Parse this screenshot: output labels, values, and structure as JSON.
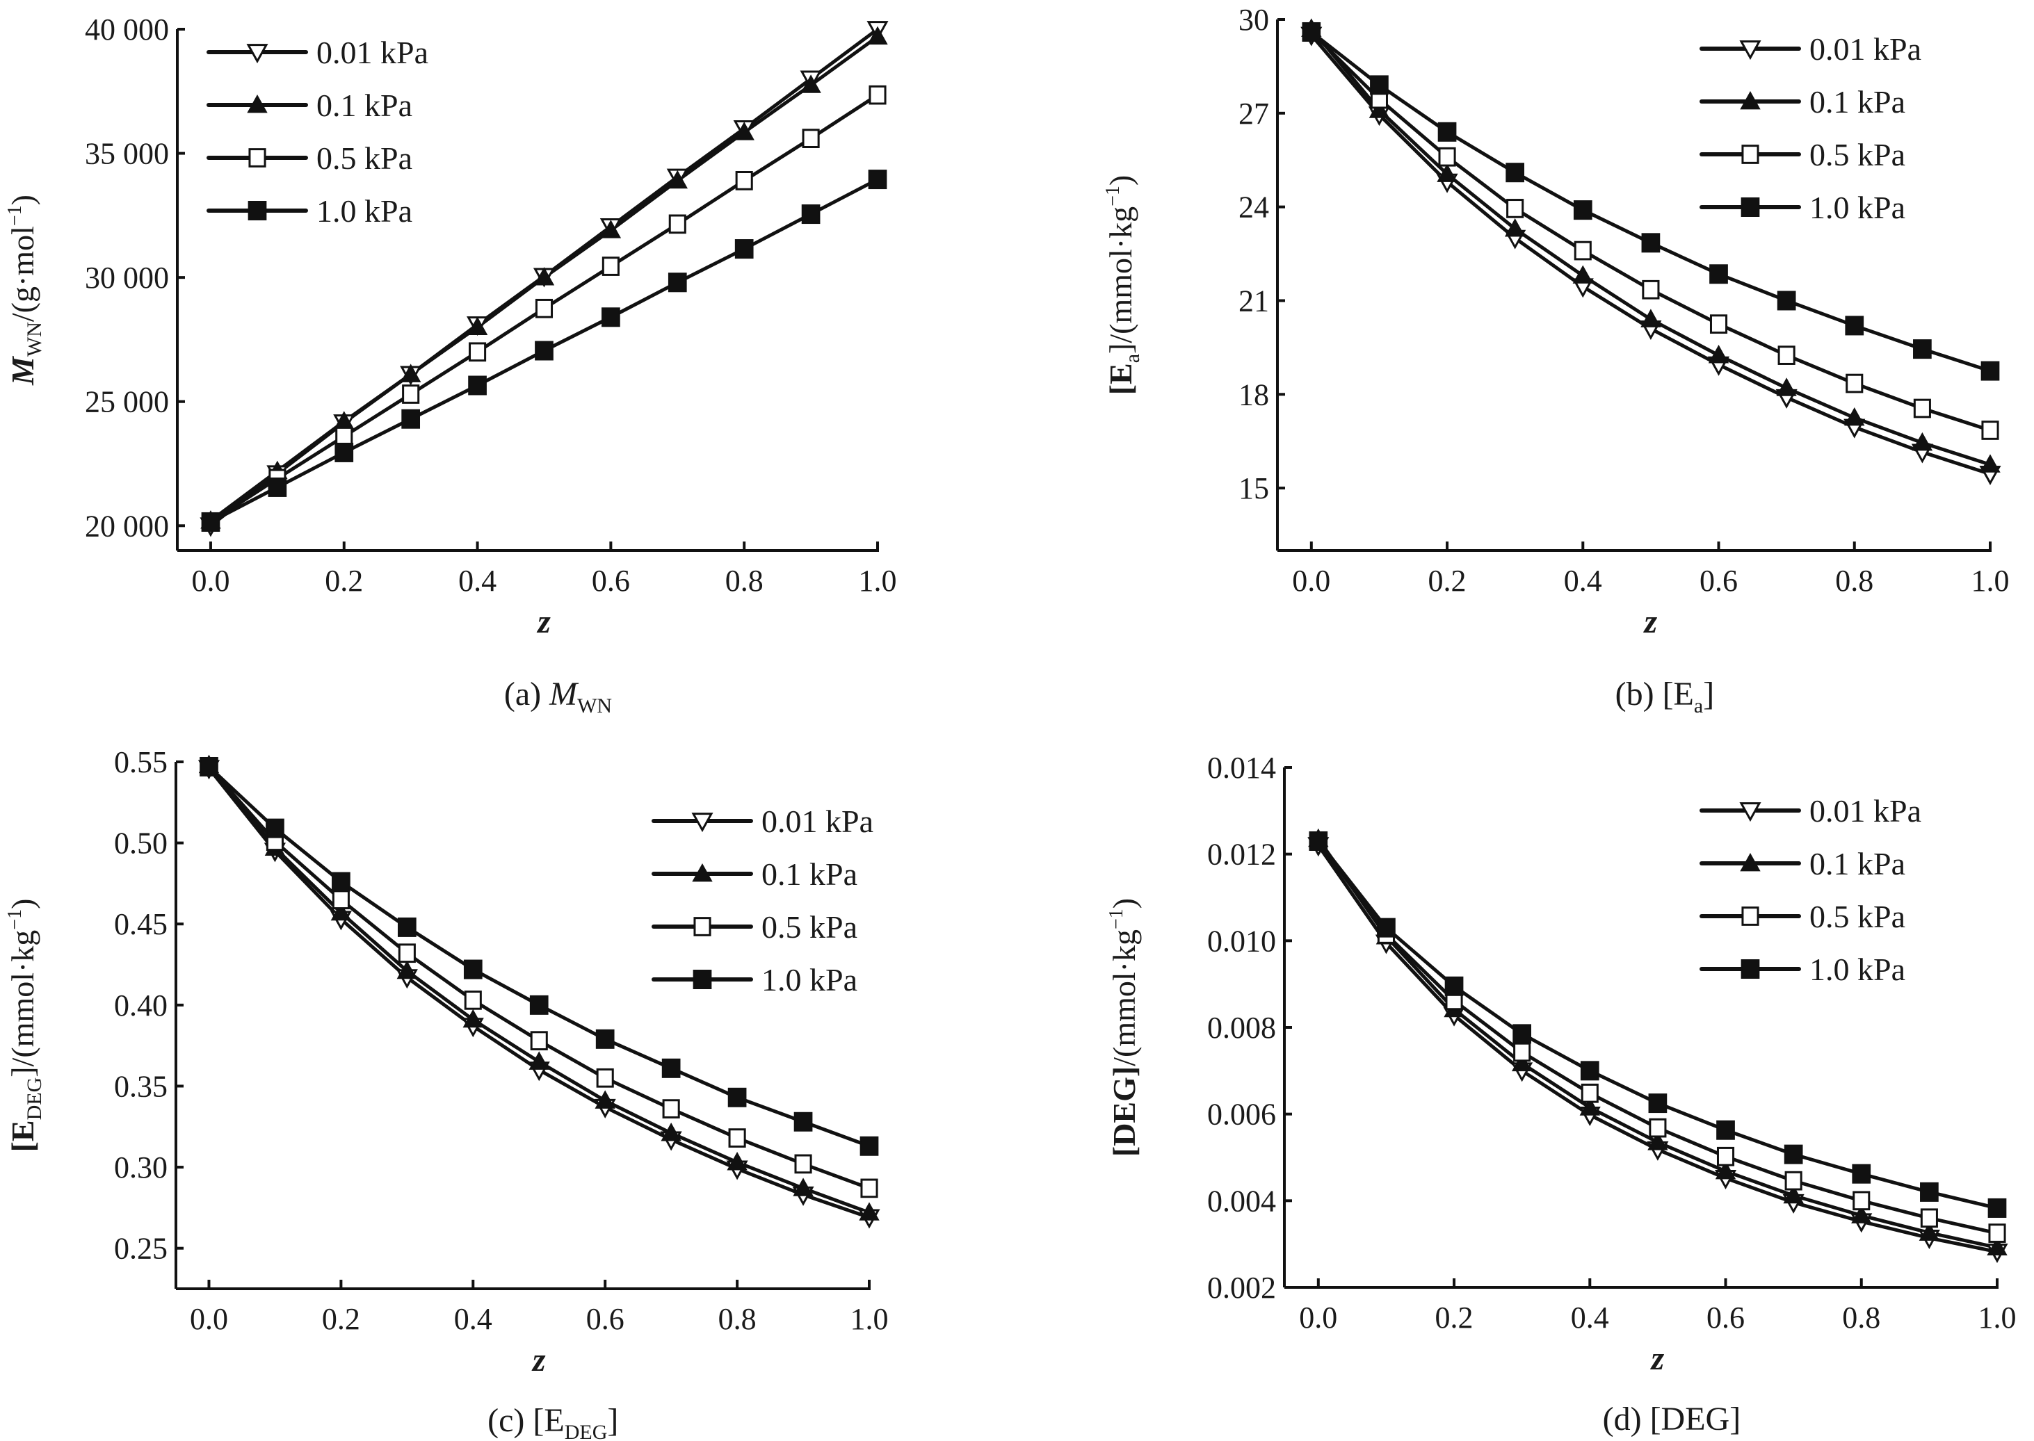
{
  "chart_data": [
    {
      "id": "a",
      "type": "line",
      "caption": {
        "prefix": "(a) ",
        "main": "M",
        "sub": "WN",
        "main_italic": true
      },
      "ylabel": {
        "main": "M",
        "sub": "WN",
        "rest": "/(g·mol",
        "sup": "−1",
        "close": ")",
        "main_italic": true
      },
      "xlabel": "z",
      "xlim": [
        -0.05,
        1.0
      ],
      "ylim": [
        19000,
        40000
      ],
      "xticks": [
        0.0,
        0.2,
        0.4,
        0.6,
        0.8,
        1.0
      ],
      "xtick_labels": [
        "0.0",
        "0.2",
        "0.4",
        "0.6",
        "0.8",
        "1.0"
      ],
      "yticks": [
        20000,
        25000,
        30000,
        35000,
        40000
      ],
      "ytick_labels": [
        "20 000",
        "25 000",
        "30 000",
        "35 000",
        "40 000"
      ],
      "legend_position": "top-left",
      "x": [
        0.0,
        0.1,
        0.2,
        0.3,
        0.4,
        0.5,
        0.6,
        0.7,
        0.8,
        0.9,
        1.0
      ],
      "series": [
        {
          "name": "0.01 kPa",
          "marker": "triangle-down-open",
          "values": [
            20000,
            22100,
            24150,
            26100,
            28100,
            30050,
            32050,
            34050,
            36000,
            38000,
            40000
          ]
        },
        {
          "name": "0.1 kPa",
          "marker": "triangle-up-filled",
          "values": [
            20200,
            22200,
            24200,
            26100,
            28000,
            30000,
            31900,
            33900,
            35850,
            37750,
            39700
          ]
        },
        {
          "name": "0.5 kPa",
          "marker": "square-open",
          "values": [
            20150,
            21900,
            23600,
            25300,
            27000,
            28750,
            30450,
            32150,
            33900,
            35600,
            37350
          ]
        },
        {
          "name": "1.0 kPa",
          "marker": "square-filled",
          "values": [
            20150,
            21550,
            22950,
            24300,
            25650,
            27050,
            28400,
            29800,
            31150,
            32550,
            33950
          ]
        }
      ]
    },
    {
      "id": "b",
      "type": "line",
      "caption": {
        "prefix": "(b) [E",
        "main": "",
        "sub": "a",
        "suffix": "]",
        "main_italic": false
      },
      "ylabel": {
        "main": "[E",
        "sub": "a",
        "rest": "]/(mmol·kg",
        "sup": "−1",
        "close": ")",
        "main_italic": false
      },
      "xlabel": "z",
      "xlim": [
        -0.05,
        1.0
      ],
      "ylim": [
        13,
        30
      ],
      "xticks": [
        0.0,
        0.2,
        0.4,
        0.6,
        0.8,
        1.0
      ],
      "xtick_labels": [
        "0.0",
        "0.2",
        "0.4",
        "0.6",
        "0.8",
        "1.0"
      ],
      "yticks": [
        15,
        18,
        21,
        24,
        27,
        30
      ],
      "ytick_labels": [
        "15",
        "18",
        "21",
        "24",
        "27",
        "30"
      ],
      "legend_position": "top-right",
      "x": [
        0.0,
        0.1,
        0.2,
        0.3,
        0.4,
        0.5,
        0.6,
        0.7,
        0.8,
        0.9,
        1.0
      ],
      "series": [
        {
          "name": "0.01 kPa",
          "marker": "triangle-down-open",
          "values": [
            29.5,
            26.95,
            24.8,
            23.0,
            21.45,
            20.1,
            18.95,
            17.9,
            16.95,
            16.15,
            15.45
          ]
        },
        {
          "name": "0.1 kPa",
          "marker": "triangle-up-filled",
          "values": [
            29.7,
            27.1,
            25.05,
            23.3,
            21.8,
            20.4,
            19.25,
            18.2,
            17.25,
            16.45,
            15.75
          ]
        },
        {
          "name": "0.5 kPa",
          "marker": "square-open",
          "values": [
            29.6,
            27.45,
            25.6,
            23.95,
            22.6,
            21.35,
            20.25,
            19.25,
            18.35,
            17.55,
            16.85
          ]
        },
        {
          "name": "1.0 kPa",
          "marker": "square-filled",
          "values": [
            29.6,
            27.9,
            26.4,
            25.1,
            23.9,
            22.85,
            21.85,
            21.0,
            20.2,
            19.45,
            18.75
          ]
        }
      ]
    },
    {
      "id": "c",
      "type": "line",
      "caption": {
        "prefix": "(c) [E",
        "main": "",
        "sub": "DEG",
        "suffix": "]",
        "main_italic": false
      },
      "ylabel": {
        "main": "[E",
        "sub": "DEG",
        "rest": "]/(mmol·kg",
        "sup": "−1",
        "close": ")",
        "main_italic": false
      },
      "xlabel": "z",
      "xlim": [
        -0.05,
        1.0
      ],
      "ylim": [
        0.225,
        0.55
      ],
      "xticks": [
        0.0,
        0.2,
        0.4,
        0.6,
        0.8,
        1.0
      ],
      "xtick_labels": [
        "0.0",
        "0.2",
        "0.4",
        "0.6",
        "0.8",
        "1.0"
      ],
      "yticks": [
        0.25,
        0.3,
        0.35,
        0.4,
        0.45,
        0.5,
        0.55
      ],
      "ytick_labels": [
        "0.25",
        "0.30",
        "0.35",
        "0.40",
        "0.45",
        "0.50",
        "0.55"
      ],
      "legend_position": "upper-right",
      "x": [
        0.0,
        0.1,
        0.2,
        0.3,
        0.4,
        0.5,
        0.6,
        0.7,
        0.8,
        0.9,
        1.0
      ],
      "series": [
        {
          "name": "0.01 kPa",
          "marker": "triangle-down-open",
          "values": [
            0.546,
            0.495,
            0.453,
            0.417,
            0.387,
            0.36,
            0.337,
            0.317,
            0.299,
            0.283,
            0.269
          ]
        },
        {
          "name": "0.1 kPa",
          "marker": "triangle-up-filled",
          "values": [
            0.548,
            0.497,
            0.457,
            0.421,
            0.391,
            0.365,
            0.341,
            0.321,
            0.303,
            0.287,
            0.272
          ]
        },
        {
          "name": "0.5 kPa",
          "marker": "square-open",
          "values": [
            0.547,
            0.501,
            0.465,
            0.432,
            0.403,
            0.378,
            0.355,
            0.336,
            0.318,
            0.302,
            0.287
          ]
        },
        {
          "name": "1.0 kPa",
          "marker": "square-filled",
          "values": [
            0.547,
            0.509,
            0.476,
            0.448,
            0.422,
            0.4,
            0.379,
            0.361,
            0.343,
            0.328,
            0.313
          ]
        }
      ]
    },
    {
      "id": "d",
      "type": "line",
      "caption": {
        "prefix": "(d) [DEG]",
        "main": "",
        "sub": "",
        "suffix": "",
        "main_italic": false
      },
      "ylabel": {
        "main": "[DEG]",
        "sub": "",
        "rest": "/(mmol·kg",
        "sup": "−1",
        "close": ")",
        "main_italic": false
      },
      "xlabel": "z",
      "xlim": [
        -0.05,
        1.0
      ],
      "ylim": [
        0.002,
        0.014
      ],
      "xticks": [
        0.0,
        0.2,
        0.4,
        0.6,
        0.8,
        1.0
      ],
      "xtick_labels": [
        "0.0",
        "0.2",
        "0.4",
        "0.6",
        "0.8",
        "1.0"
      ],
      "yticks": [
        0.002,
        0.004,
        0.006,
        0.008,
        0.01,
        0.012,
        0.014
      ],
      "ytick_labels": [
        "0.002",
        "0.004",
        "0.006",
        "0.008",
        "0.010",
        "0.012",
        "0.014"
      ],
      "legend_position": "upper-right",
      "x": [
        0.0,
        0.1,
        0.2,
        0.3,
        0.4,
        0.5,
        0.6,
        0.7,
        0.8,
        0.9,
        1.0
      ],
      "series": [
        {
          "name": "0.01 kPa",
          "marker": "triangle-down-open",
          "values": [
            0.0122,
            0.00995,
            0.00828,
            0.007,
            0.00598,
            0.00518,
            0.00452,
            0.00396,
            0.00352,
            0.00314,
            0.00282
          ]
        },
        {
          "name": "0.1 kPa",
          "marker": "triangle-up-filled",
          "values": [
            0.01235,
            0.0101,
            0.00842,
            0.00717,
            0.00615,
            0.00535,
            0.00468,
            0.00412,
            0.00366,
            0.00326,
            0.00292
          ]
        },
        {
          "name": "0.5 kPa",
          "marker": "square-open",
          "values": [
            0.0123,
            0.01015,
            0.00862,
            0.00743,
            0.00648,
            0.00568,
            0.00502,
            0.00446,
            0.004,
            0.0036,
            0.00325
          ]
        },
        {
          "name": "1.0 kPa",
          "marker": "square-filled",
          "values": [
            0.0123,
            0.0103,
            0.00895,
            0.00785,
            0.007,
            0.00625,
            0.00563,
            0.00507,
            0.00462,
            0.0042,
            0.00383
          ]
        }
      ]
    }
  ]
}
